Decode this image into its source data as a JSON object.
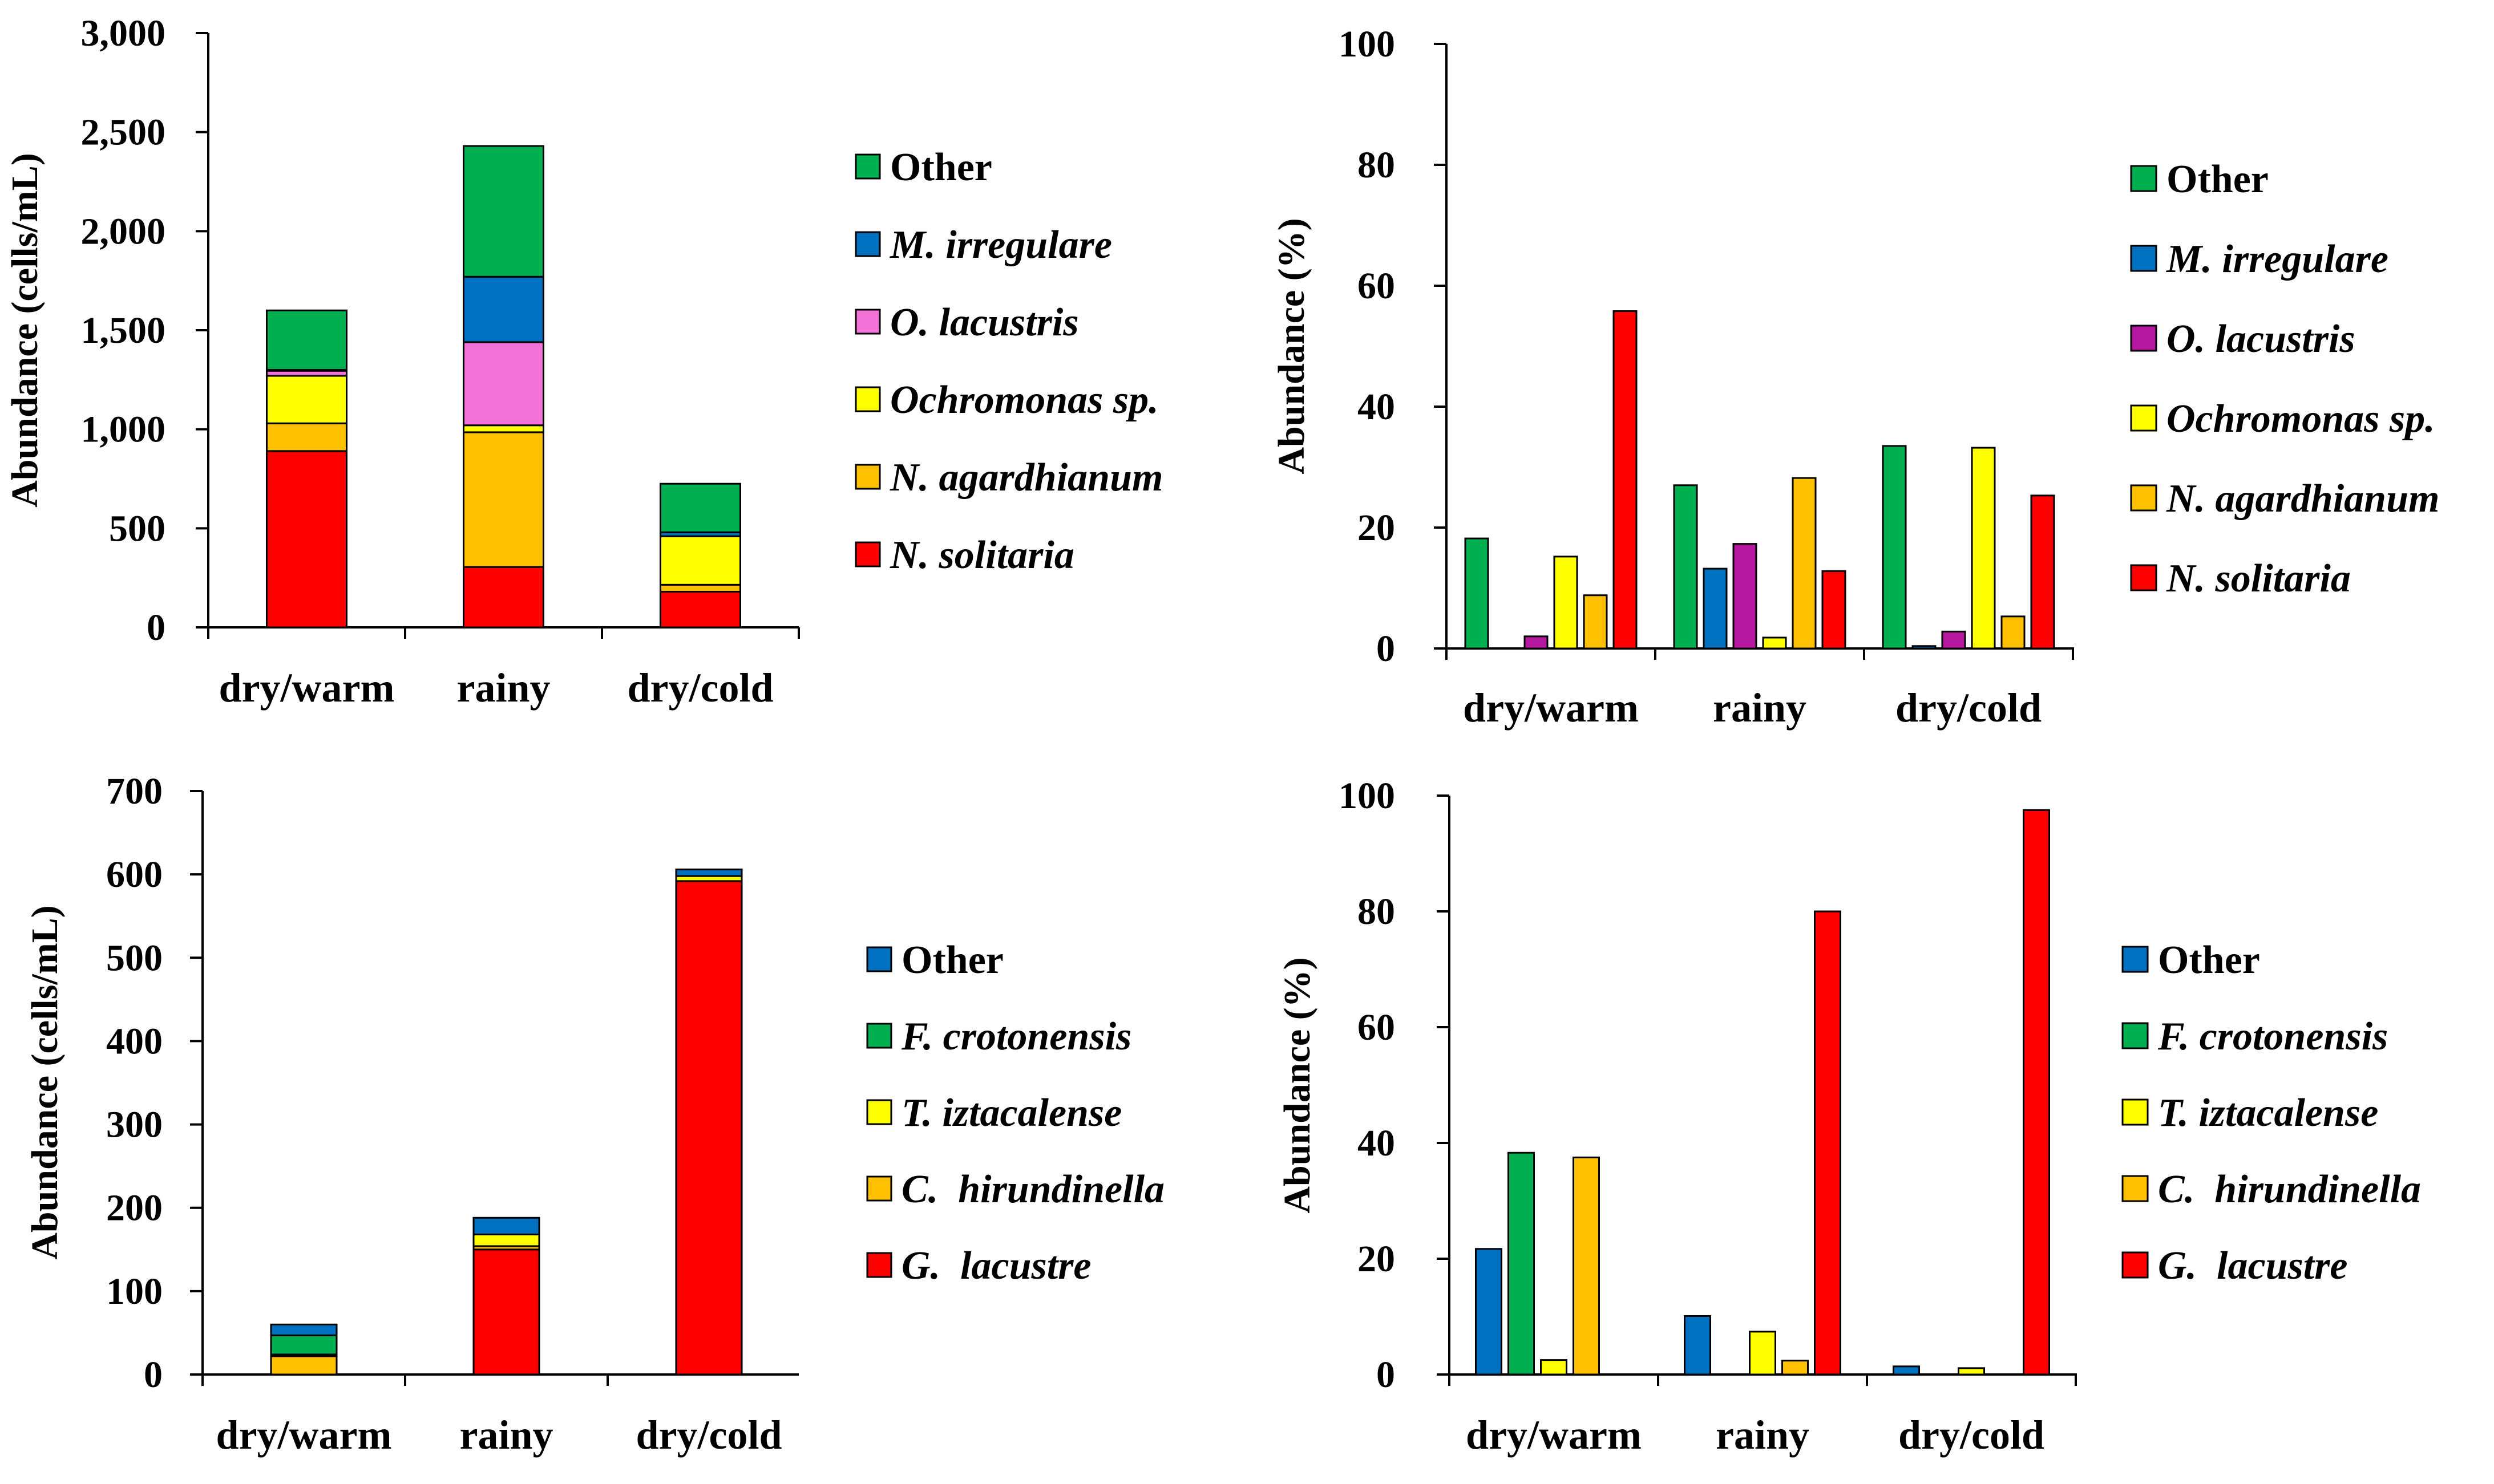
{
  "colors": {
    "red": "#ff0000",
    "orange": "#ffc000",
    "yellow": "#ffff00",
    "pink": "#f372d7",
    "magenta": "#b5179e",
    "blue": "#0070c0",
    "green": "#00b050"
  },
  "chart_data": [
    {
      "id": "a",
      "type": "bar",
      "stacked": true,
      "categories": [
        "dry/warm",
        "rainy",
        "dry/cold"
      ],
      "ylabel": "Abundance (cells/mL)",
      "ylim": [
        0,
        3000
      ],
      "yticks": [
        0,
        500,
        1000,
        1500,
        2000,
        2500,
        3000
      ],
      "ytick_labels": [
        "0",
        "500",
        "1,000",
        "1,500",
        "2,000",
        "2,500",
        "3,000"
      ],
      "series": [
        {
          "name": "N. solitaria",
          "color": "#ff0000",
          "values": [
            890,
            305,
            180
          ]
        },
        {
          "name": "N. agardhianum",
          "color": "#ffc000",
          "values": [
            140,
            680,
            35
          ]
        },
        {
          "name": "Ochromonas sp.",
          "color": "#ffff00",
          "values": [
            240,
            35,
            245
          ]
        },
        {
          "name": "O. lacustris",
          "color": "#f372d7",
          "values": [
            25,
            420,
            0
          ]
        },
        {
          "name": "M. irregulare",
          "color": "#0070c0",
          "values": [
            5,
            330,
            20
          ]
        },
        {
          "name": "Other",
          "color": "#00b050",
          "values": [
            300,
            660,
            245
          ]
        }
      ],
      "legend_order": [
        "Other",
        "M. irregulare",
        "O. lacustris",
        "Ochromonas sp.",
        "N. agardhianum",
        "N. solitaria"
      ]
    },
    {
      "id": "b",
      "type": "bar",
      "stacked": false,
      "categories": [
        "dry/warm",
        "rainy",
        "dry/cold"
      ],
      "ylabel": "Abundance (%)",
      "ylim": [
        0,
        100
      ],
      "yticks": [
        0,
        20,
        40,
        60,
        80,
        100
      ],
      "ytick_labels": [
        "0",
        "20",
        "40",
        "60",
        "80",
        "100"
      ],
      "series": [
        {
          "name": "Other",
          "color": "#00b050",
          "values": [
            18.2,
            27,
            33.5
          ]
        },
        {
          "name": "M. irregulare",
          "color": "#0070c0",
          "values": [
            0,
            13.2,
            0.4
          ]
        },
        {
          "name": "O. lacustris",
          "color": "#b5179e",
          "values": [
            2,
            17.3,
            2.8
          ]
        },
        {
          "name": "Ochromonas sp.",
          "color": "#ffff00",
          "values": [
            15.2,
            1.8,
            33.2
          ]
        },
        {
          "name": "N. agardhianum",
          "color": "#ffc000",
          "values": [
            8.8,
            28.2,
            5.3
          ]
        },
        {
          "name": "N. solitaria",
          "color": "#ff0000",
          "values": [
            55.8,
            12.8,
            25.3
          ]
        }
      ],
      "legend_order": [
        "Other",
        "M. irregulare",
        "O. lacustris",
        "Ochromonas sp.",
        "N. agardhianum",
        "N. solitaria"
      ]
    },
    {
      "id": "c",
      "type": "bar",
      "stacked": true,
      "categories": [
        "dry/warm",
        "rainy",
        "dry/cold"
      ],
      "ylabel": "Abundance (cells/mL)",
      "ylim": [
        0,
        700
      ],
      "yticks": [
        0,
        100,
        200,
        300,
        400,
        500,
        600,
        700
      ],
      "ytick_labels": [
        "0",
        "100",
        "200",
        "300",
        "400",
        "500",
        "600",
        "700"
      ],
      "series": [
        {
          "name": "G.  lacustre",
          "color": "#ff0000",
          "values": [
            0,
            150,
            592
          ]
        },
        {
          "name": "C.  hirundinella",
          "color": "#ffc000",
          "values": [
            22,
            4,
            0
          ]
        },
        {
          "name": "T. iztacalense",
          "color": "#ffff00",
          "values": [
            2,
            14,
            6
          ]
        },
        {
          "name": "F. crotonensis",
          "color": "#00b050",
          "values": [
            23,
            0,
            0
          ]
        },
        {
          "name": "Other",
          "color": "#0070c0",
          "values": [
            13,
            20,
            8
          ]
        }
      ],
      "legend_order": [
        "Other",
        "F. crotonensis",
        "T. iztacalense",
        "C.  hirundinella",
        "G.  lacustre"
      ]
    },
    {
      "id": "d",
      "type": "bar",
      "stacked": false,
      "categories": [
        "dry/warm",
        "rainy",
        "dry/cold"
      ],
      "ylabel": "Abundance (%)",
      "ylim": [
        0,
        100
      ],
      "yticks": [
        0,
        20,
        40,
        60,
        80,
        100
      ],
      "ytick_labels": [
        "0",
        "20",
        "40",
        "60",
        "80",
        "100"
      ],
      "series": [
        {
          "name": "Other",
          "color": "#0070c0",
          "values": [
            21.7,
            10.1,
            1.4
          ]
        },
        {
          "name": "F. crotonensis",
          "color": "#00b050",
          "values": [
            38.3,
            0,
            0
          ]
        },
        {
          "name": "T. iztacalense",
          "color": "#ffff00",
          "values": [
            2.5,
            7.4,
            1.1
          ]
        },
        {
          "name": "C.  hirundinella",
          "color": "#ffc000",
          "values": [
            37.5,
            2.4,
            0
          ]
        },
        {
          "name": "G.  lacustre",
          "color": "#ff0000",
          "values": [
            0,
            80,
            97.5
          ]
        }
      ],
      "legend_order": [
        "Other",
        "F. crotonensis",
        "T. iztacalense",
        "C.  hirundinella",
        "G.  lacustre"
      ]
    }
  ]
}
